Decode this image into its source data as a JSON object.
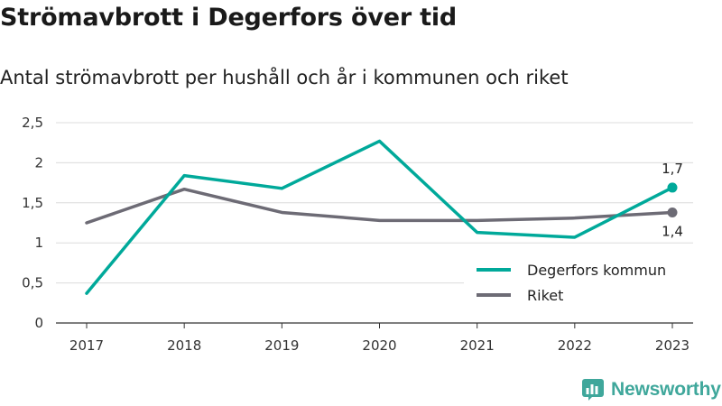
{
  "header": {
    "title": "Strömavbrott i Degerfors över tid",
    "subtitle": "Antal strömavbrott per hushåll och år i kommunen och riket"
  },
  "brand": {
    "name": "Newsworthy",
    "icon": "newsworthy-logo-icon"
  },
  "colors": {
    "kommun": "#00a99a",
    "riket": "#6d6b75",
    "grid": "#dcdcdc",
    "brand": "#3fa79b"
  },
  "chart_data": {
    "type": "line",
    "x": [
      "2017",
      "2018",
      "2019",
      "2020",
      "2021",
      "2022",
      "2023"
    ],
    "yticks": [
      "0",
      "0,5",
      "1",
      "1,5",
      "2",
      "2,5"
    ],
    "ylim": [
      0,
      2.5
    ],
    "grid": true,
    "legend_position": "bottom-right",
    "series": [
      {
        "name": "Degerfors kommun",
        "values": [
          0.37,
          1.84,
          1.68,
          2.27,
          1.13,
          1.07,
          1.69
        ],
        "end_label": "1,7"
      },
      {
        "name": "Riket",
        "values": [
          1.25,
          1.67,
          1.38,
          1.28,
          1.28,
          1.31,
          1.38
        ],
        "end_label": "1,4"
      }
    ]
  }
}
